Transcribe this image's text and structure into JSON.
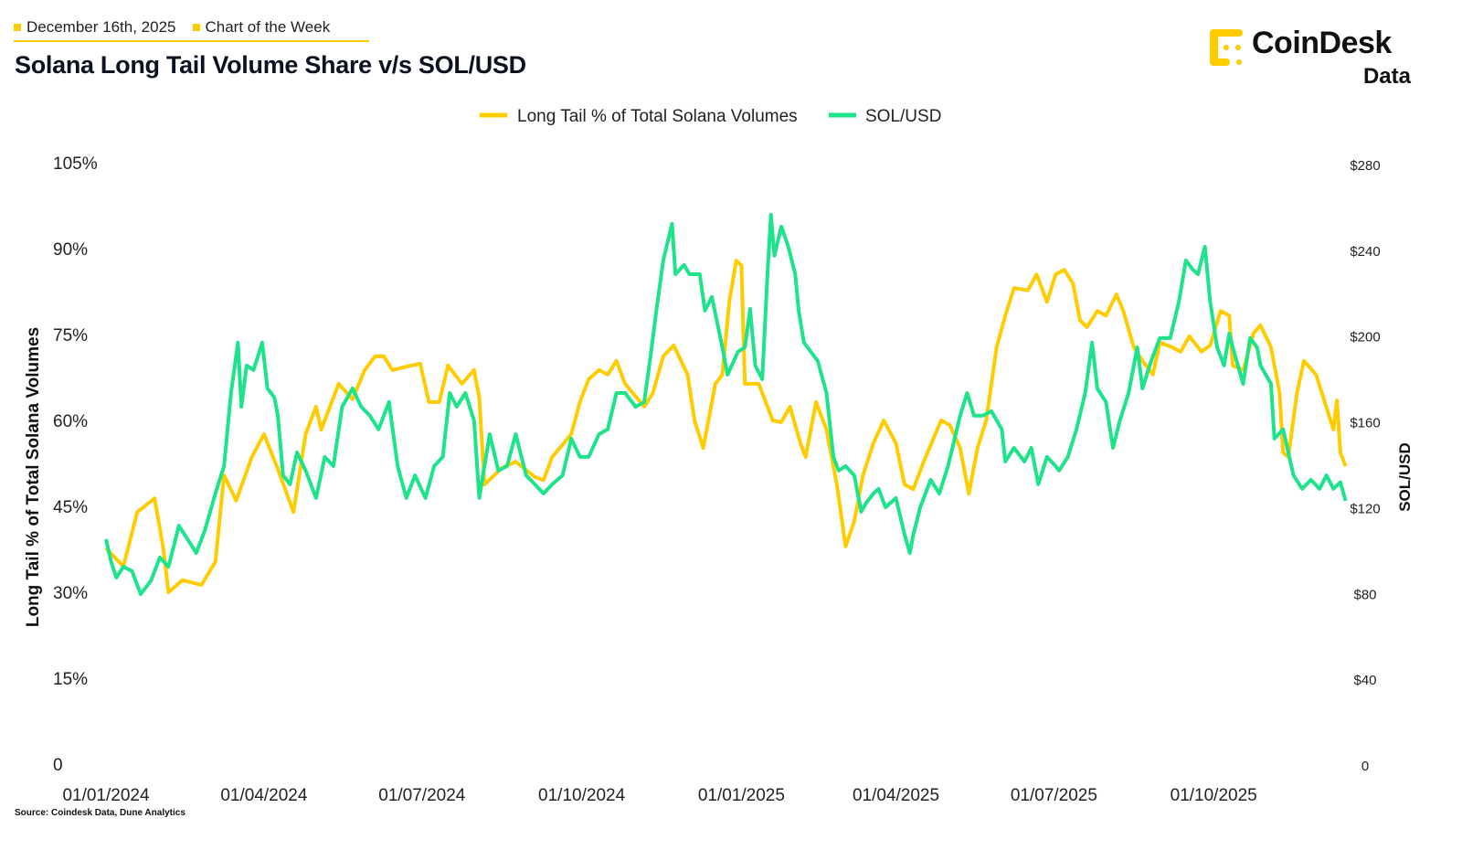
{
  "header": {
    "date": "December 16th, 2025",
    "category": "Chart of the Week",
    "title": "Solana Long Tail Volume Share v/s SOL/USD"
  },
  "logo": {
    "name": "CoinDesk",
    "sub": "Data"
  },
  "source": "Source: Coindesk Data, Dune Analytics",
  "colors": {
    "long_tail": "#FFCC00",
    "sol_usd": "#1DE38A",
    "accent": "#FFCC00"
  },
  "chart_data": {
    "type": "line",
    "title": "Solana Long Tail Volume Share v/s SOL/USD",
    "x_unit": "days since 2024-01-01",
    "xlim": [
      0,
      714
    ],
    "x_ticks": [
      {
        "day": 0,
        "label": "01/01/2024"
      },
      {
        "day": 91,
        "label": "01/04/2024"
      },
      {
        "day": 182,
        "label": "01/07/2024"
      },
      {
        "day": 274,
        "label": "01/10/2024"
      },
      {
        "day": 366,
        "label": "01/01/2025"
      },
      {
        "day": 455,
        "label": "01/04/2025"
      },
      {
        "day": 546,
        "label": "01/07/2025"
      },
      {
        "day": 638,
        "label": "01/10/2025"
      }
    ],
    "ylabel": "Long Tail % of Total Solana Volumes",
    "ylim": [
      0,
      105
    ],
    "y_ticks": [
      {
        "value": 0,
        "label": "0"
      },
      {
        "value": 15,
        "label": "15%"
      },
      {
        "value": 30,
        "label": "30%"
      },
      {
        "value": 45,
        "label": "45%"
      },
      {
        "value": 60,
        "label": "60%"
      },
      {
        "value": 75,
        "label": "75%"
      },
      {
        "value": 90,
        "label": "90%"
      },
      {
        "value": 105,
        "label": "105%"
      }
    ],
    "y2label": "SOL/USD",
    "y2lim": [
      0,
      280
    ],
    "y2_ticks": [
      {
        "value": 0,
        "label": "0"
      },
      {
        "value": 40,
        "label": "$40"
      },
      {
        "value": 80,
        "label": "$80"
      },
      {
        "value": 120,
        "label": "$120"
      },
      {
        "value": 160,
        "label": "$160"
      },
      {
        "value": 200,
        "label": "$200"
      },
      {
        "value": 240,
        "label": "$240"
      },
      {
        "value": 280,
        "label": "$280"
      }
    ],
    "legend_position": "top-center",
    "grid": false,
    "series": [
      {
        "name": "Long Tail % of Total Solana Volumes",
        "axis": "left",
        "points": [
          [
            0,
            37.7
          ],
          [
            10,
            34.5
          ],
          [
            18,
            44.0
          ],
          [
            28,
            46.4
          ],
          [
            33,
            37.7
          ],
          [
            36,
            30.0
          ],
          [
            44,
            32.1
          ],
          [
            55,
            31.3
          ],
          [
            63,
            35.3
          ],
          [
            68,
            50.4
          ],
          [
            75,
            46.0
          ],
          [
            84,
            53.6
          ],
          [
            91,
            57.6
          ],
          [
            99,
            51.5
          ],
          [
            108,
            44.0
          ],
          [
            115,
            57.6
          ],
          [
            121,
            62.4
          ],
          [
            124,
            58.4
          ],
          [
            134,
            66.4
          ],
          [
            142,
            63.7
          ],
          [
            149,
            68.8
          ],
          [
            155,
            71.2
          ],
          [
            160,
            71.2
          ],
          [
            165,
            68.8
          ],
          [
            176,
            69.6
          ],
          [
            181,
            69.9
          ],
          [
            186,
            63.2
          ],
          [
            192,
            63.2
          ],
          [
            197,
            69.6
          ],
          [
            205,
            66.4
          ],
          [
            212,
            68.8
          ],
          [
            215,
            64.0
          ],
          [
            218,
            48.8
          ],
          [
            228,
            51.7
          ],
          [
            236,
            52.8
          ],
          [
            247,
            50.1
          ],
          [
            252,
            49.6
          ],
          [
            257,
            53.6
          ],
          [
            268,
            57.6
          ],
          [
            273,
            63.2
          ],
          [
            278,
            67.2
          ],
          [
            284,
            68.8
          ],
          [
            289,
            68.0
          ],
          [
            294,
            70.4
          ],
          [
            299,
            66.4
          ],
          [
            310,
            62.4
          ],
          [
            315,
            64.8
          ],
          [
            321,
            71.2
          ],
          [
            327,
            73.1
          ],
          [
            335,
            68.0
          ],
          [
            339,
            60.0
          ],
          [
            344,
            55.2
          ],
          [
            351,
            66.4
          ],
          [
            355,
            68.0
          ],
          [
            359,
            80.7
          ],
          [
            363,
            87.9
          ],
          [
            366,
            87.1
          ],
          [
            368,
            66.4
          ],
          [
            376,
            66.4
          ],
          [
            384,
            60.0
          ],
          [
            389,
            59.7
          ],
          [
            394,
            62.4
          ],
          [
            400,
            56.0
          ],
          [
            403,
            53.6
          ],
          [
            409,
            63.2
          ],
          [
            415,
            58.4
          ],
          [
            421,
            48.8
          ],
          [
            426,
            38.0
          ],
          [
            431,
            42.4
          ],
          [
            436,
            50.4
          ],
          [
            442,
            56.0
          ],
          [
            448,
            60.0
          ],
          [
            455,
            56.0
          ],
          [
            460,
            48.8
          ],
          [
            465,
            48.0
          ],
          [
            471,
            52.8
          ],
          [
            481,
            60.0
          ],
          [
            486,
            59.2
          ],
          [
            492,
            55.2
          ],
          [
            497,
            47.2
          ],
          [
            502,
            55.2
          ],
          [
            507,
            60.0
          ],
          [
            513,
            72.8
          ],
          [
            518,
            78.3
          ],
          [
            523,
            83.1
          ],
          [
            531,
            82.7
          ],
          [
            536,
            85.5
          ],
          [
            542,
            80.7
          ],
          [
            547,
            85.5
          ],
          [
            552,
            86.3
          ],
          [
            557,
            83.9
          ],
          [
            561,
            77.5
          ],
          [
            565,
            76.3
          ],
          [
            571,
            79.1
          ],
          [
            576,
            78.3
          ],
          [
            582,
            82.0
          ],
          [
            586,
            79.1
          ],
          [
            592,
            72.8
          ],
          [
            597,
            70.4
          ],
          [
            603,
            68.0
          ],
          [
            607,
            73.6
          ],
          [
            614,
            72.8
          ],
          [
            619,
            72.0
          ],
          [
            624,
            74.7
          ],
          [
            631,
            72.0
          ],
          [
            636,
            73.1
          ],
          [
            642,
            79.1
          ],
          [
            647,
            78.3
          ],
          [
            649,
            69.6
          ],
          [
            655,
            68.8
          ],
          [
            661,
            75.2
          ],
          [
            665,
            76.6
          ],
          [
            671,
            72.8
          ],
          [
            676,
            64.8
          ],
          [
            678,
            54.4
          ],
          [
            681,
            53.6
          ],
          [
            686,
            64.8
          ],
          [
            690,
            70.4
          ],
          [
            697,
            68.0
          ],
          [
            702,
            63.2
          ],
          [
            707,
            58.4
          ],
          [
            709,
            63.5
          ],
          [
            711,
            54.4
          ],
          [
            714,
            52.0
          ]
        ]
      },
      {
        "name": "SOL/USD",
        "axis": "right",
        "points": [
          [
            0,
            105.7
          ],
          [
            3,
            95
          ],
          [
            6,
            87.8
          ],
          [
            10,
            92.9
          ],
          [
            15,
            90.8
          ],
          [
            20,
            80.1
          ],
          [
            26,
            86.5
          ],
          [
            31,
            97.2
          ],
          [
            36,
            92.9
          ],
          [
            42,
            112
          ],
          [
            47,
            105.7
          ],
          [
            52,
            99.3
          ],
          [
            57,
            110
          ],
          [
            63,
            127
          ],
          [
            68,
            139.8
          ],
          [
            72,
            173.9
          ],
          [
            76,
            197.4
          ],
          [
            78,
            167.5
          ],
          [
            81,
            186.7
          ],
          [
            85,
            184.6
          ],
          [
            90,
            197.4
          ],
          [
            93,
            176
          ],
          [
            97,
            171.8
          ],
          [
            99,
            163.3
          ],
          [
            102,
            135.5
          ],
          [
            106,
            131.3
          ],
          [
            110,
            146.2
          ],
          [
            115,
            137.7
          ],
          [
            121,
            124.9
          ],
          [
            126,
            144.1
          ],
          [
            131,
            139.8
          ],
          [
            136,
            167.5
          ],
          [
            142,
            176
          ],
          [
            147,
            167.5
          ],
          [
            152,
            163.3
          ],
          [
            157,
            156.9
          ],
          [
            163,
            169.7
          ],
          [
            168,
            139.8
          ],
          [
            173,
            124.9
          ],
          [
            178,
            135.5
          ],
          [
            184,
            124.9
          ],
          [
            189,
            139.8
          ],
          [
            194,
            144.1
          ],
          [
            198,
            173.9
          ],
          [
            202,
            167.5
          ],
          [
            207,
            173.9
          ],
          [
            212,
            161.1
          ],
          [
            215,
            124.9
          ],
          [
            221,
            154.7
          ],
          [
            226,
            137.7
          ],
          [
            231,
            139.8
          ],
          [
            236,
            154.7
          ],
          [
            242,
            135.5
          ],
          [
            247,
            131.3
          ],
          [
            252,
            127
          ],
          [
            257,
            131.3
          ],
          [
            263,
            135.5
          ],
          [
            268,
            152.6
          ],
          [
            273,
            144.1
          ],
          [
            278,
            144.1
          ],
          [
            284,
            154.7
          ],
          [
            289,
            156.9
          ],
          [
            294,
            173.9
          ],
          [
            299,
            173.9
          ],
          [
            305,
            167.5
          ],
          [
            310,
            169.6
          ],
          [
            314,
            193.1
          ],
          [
            317,
            212.3
          ],
          [
            321,
            235.7
          ],
          [
            326,
            252.8
          ],
          [
            328,
            229.3
          ],
          [
            333,
            233.6
          ],
          [
            336,
            229.3
          ],
          [
            342,
            229.3
          ],
          [
            345,
            212.3
          ],
          [
            349,
            218.7
          ],
          [
            355,
            195.2
          ],
          [
            358,
            182.4
          ],
          [
            364,
            193.1
          ],
          [
            368,
            195.2
          ],
          [
            371,
            213.1
          ],
          [
            374,
            186.7
          ],
          [
            378,
            180.3
          ],
          [
            381,
            229.3
          ],
          [
            383,
            257
          ],
          [
            385,
            237.9
          ],
          [
            389,
            251.5
          ],
          [
            393,
            242.1
          ],
          [
            397,
            229.3
          ],
          [
            399,
            212.3
          ],
          [
            402,
            197.4
          ],
          [
            406,
            193.1
          ],
          [
            410,
            188.8
          ],
          [
            415,
            173.9
          ],
          [
            419,
            144.1
          ],
          [
            422,
            137.7
          ],
          [
            426,
            139.8
          ],
          [
            431,
            135.5
          ],
          [
            435,
            118.5
          ],
          [
            438,
            122.8
          ],
          [
            442,
            127
          ],
          [
            445,
            129.2
          ],
          [
            449,
            120.6
          ],
          [
            455,
            124.9
          ],
          [
            460,
            107.8
          ],
          [
            463,
            99.3
          ],
          [
            465,
            107.8
          ],
          [
            469,
            120.6
          ],
          [
            475,
            133.4
          ],
          [
            480,
            127
          ],
          [
            485,
            139.8
          ],
          [
            492,
            163.3
          ],
          [
            496,
            173.9
          ],
          [
            500,
            163.3
          ],
          [
            505,
            163.3
          ],
          [
            510,
            165.4
          ],
          [
            516,
            156.9
          ],
          [
            518,
            141.9
          ],
          [
            523,
            148.3
          ],
          [
            529,
            141.9
          ],
          [
            533,
            148.3
          ],
          [
            537,
            131.3
          ],
          [
            542,
            144.1
          ],
          [
            547,
            139.8
          ],
          [
            549,
            137.7
          ],
          [
            554,
            144.1
          ],
          [
            559,
            156.9
          ],
          [
            564,
            173.9
          ],
          [
            568,
            197.4
          ],
          [
            571,
            176
          ],
          [
            576,
            169.6
          ],
          [
            580,
            148.3
          ],
          [
            584,
            161.1
          ],
          [
            589,
            173.9
          ],
          [
            594,
            195.2
          ],
          [
            597,
            176
          ],
          [
            602,
            188.8
          ],
          [
            607,
            199.5
          ],
          [
            613,
            199.5
          ],
          [
            618,
            216.5
          ],
          [
            622,
            235.7
          ],
          [
            626,
            231.4
          ],
          [
            629,
            229.3
          ],
          [
            633,
            242.1
          ],
          [
            636,
            216.5
          ],
          [
            640,
            195.2
          ],
          [
            644,
            186.7
          ],
          [
            647,
            201.6
          ],
          [
            649,
            195.2
          ],
          [
            655,
            178.2
          ],
          [
            659,
            199.5
          ],
          [
            663,
            195.2
          ],
          [
            665,
            186.7
          ],
          [
            671,
            178.2
          ],
          [
            673,
            152.6
          ],
          [
            678,
            156.9
          ],
          [
            684,
            135.5
          ],
          [
            689,
            129.2
          ],
          [
            694,
            133.4
          ],
          [
            699,
            129.2
          ],
          [
            703,
            135.5
          ],
          [
            707,
            129.2
          ],
          [
            711,
            132.3
          ],
          [
            714,
            123.6
          ]
        ]
      }
    ]
  }
}
